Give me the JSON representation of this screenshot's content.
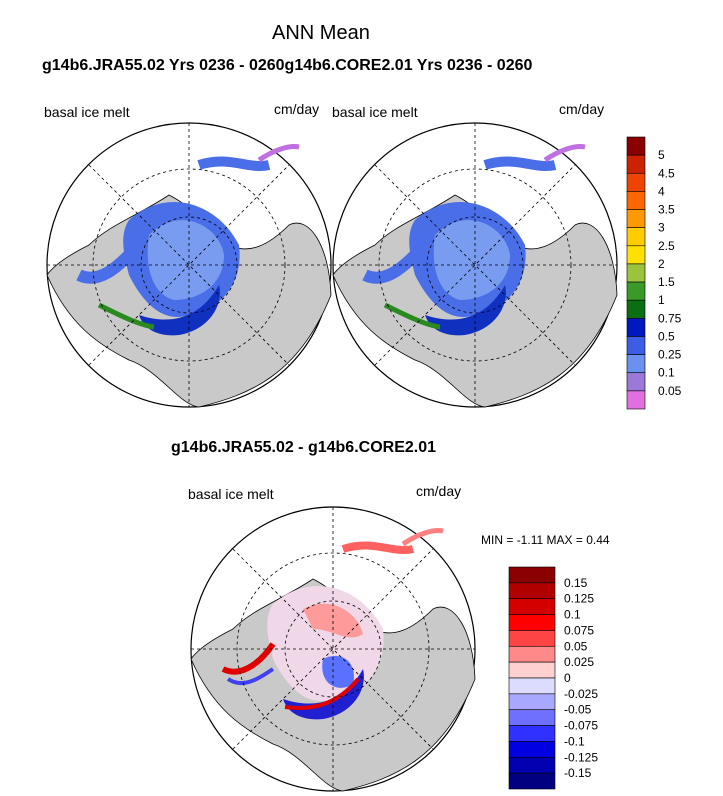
{
  "figure": {
    "title": "ANN Mean",
    "panels_header": "g14b6.JRA55.02  Yrs 0236 - 0260g14b6.CORE2.01  Yrs 0236 - 0260",
    "diff_header": "g14b6.JRA55.02 - g14b6.CORE2.01"
  },
  "panels": [
    {
      "variable": "basal ice melt",
      "units": "cm/day"
    },
    {
      "variable": "basal ice melt",
      "units": "cm/day"
    },
    {
      "variable": "basal ice melt",
      "units": "cm/day"
    }
  ],
  "diff_stats": {
    "min_label": "MIN =",
    "min_value": "-1.11",
    "max_label": "MAX =",
    "max_value": "0.44"
  },
  "colorbar_top": {
    "labels": [
      "5",
      "4.5",
      "4",
      "3.5",
      "3",
      "2.5",
      "2",
      "1.5",
      "1",
      "0.75",
      "0.5",
      "0.25",
      "0.1",
      "0.05"
    ],
    "colors": [
      "#8b0000",
      "#cc2200",
      "#ee4400",
      "#ff6600",
      "#ff9900",
      "#ffcc00",
      "#ffe000",
      "#9ac43c",
      "#3a9a28",
      "#0a6e12",
      "#0018c0",
      "#3c5ee6",
      "#6a90f0",
      "#9b79d9",
      "#e070e0"
    ]
  },
  "colorbar_diff": {
    "labels": [
      "0.15",
      "0.125",
      "0.1",
      "0.075",
      "0.05",
      "0.025",
      "0",
      "-0.025",
      "-0.05",
      "-0.075",
      "-0.1",
      "-0.125",
      "-0.15"
    ],
    "colors": [
      "#8b0000",
      "#b00000",
      "#d40000",
      "#ff0000",
      "#ff4444",
      "#ff8888",
      "#ffd0d0",
      "#dcdcff",
      "#a8a8ff",
      "#7070ff",
      "#3030ff",
      "#0000e0",
      "#0000b0",
      "#000080"
    ]
  }
}
